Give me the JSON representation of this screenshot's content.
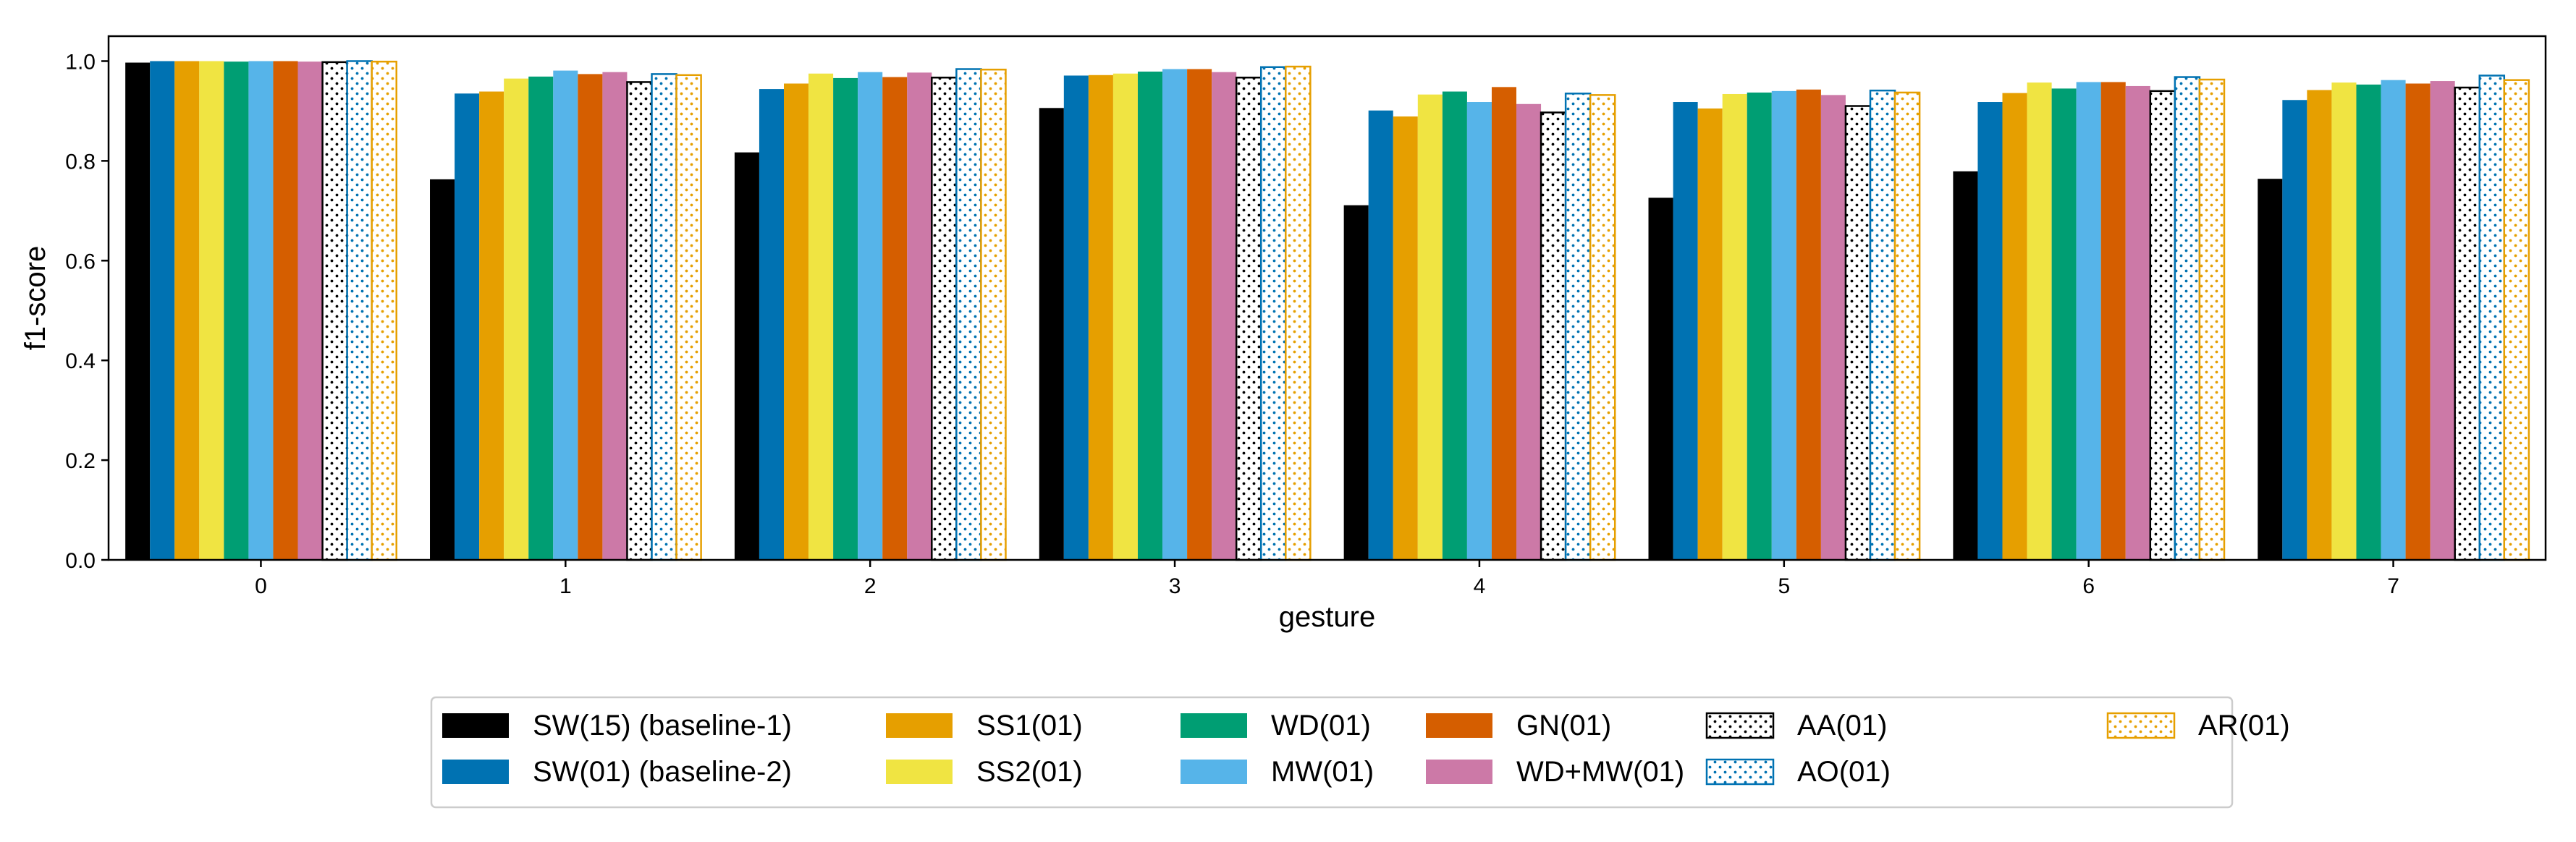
{
  "chart_data": {
    "type": "bar",
    "title": "",
    "xlabel": "gesture",
    "ylabel": "f1-score",
    "ylim": [
      0,
      1.05
    ],
    "yticks": [
      "0.0",
      "0.2",
      "0.4",
      "0.6",
      "0.8",
      "1.0"
    ],
    "categories": [
      "0",
      "1",
      "2",
      "3",
      "4",
      "5",
      "6",
      "7"
    ],
    "legend_position": "bottom-center",
    "series": [
      {
        "name": "SW(15) (baseline-1)",
        "color": "#000000",
        "hatch": false,
        "values": [
          0.997,
          0.763,
          0.817,
          0.906,
          0.711,
          0.726,
          0.779,
          0.764
        ]
      },
      {
        "name": "SW(01) (baseline-2)",
        "color": "#0072b2",
        "hatch": false,
        "values": [
          1.0,
          0.935,
          0.944,
          0.971,
          0.901,
          0.918,
          0.918,
          0.922
        ]
      },
      {
        "name": "SS1(01)",
        "color": "#e69f00",
        "hatch": false,
        "values": [
          1.0,
          0.939,
          0.955,
          0.972,
          0.889,
          0.905,
          0.936,
          0.942
        ]
      },
      {
        "name": "SS2(01)",
        "color": "#f0e442",
        "hatch": false,
        "values": [
          1.0,
          0.965,
          0.975,
          0.975,
          0.933,
          0.934,
          0.957,
          0.957
        ]
      },
      {
        "name": "WD(01)",
        "color": "#009e73",
        "hatch": false,
        "values": [
          0.999,
          0.969,
          0.966,
          0.979,
          0.939,
          0.937,
          0.945,
          0.953
        ]
      },
      {
        "name": "MW(01)",
        "color": "#56b4e9",
        "hatch": false,
        "values": [
          1.0,
          0.981,
          0.978,
          0.984,
          0.918,
          0.94,
          0.958,
          0.962
        ]
      },
      {
        "name": "GN(01)",
        "color": "#d55e00",
        "hatch": false,
        "values": [
          1.0,
          0.974,
          0.968,
          0.984,
          0.948,
          0.943,
          0.958,
          0.955
        ]
      },
      {
        "name": "WD+MW(01)",
        "color": "#cc79a7",
        "hatch": false,
        "values": [
          0.999,
          0.978,
          0.977,
          0.978,
          0.914,
          0.932,
          0.95,
          0.96
        ]
      },
      {
        "name": "AA(01)",
        "color": "#000000",
        "hatch": true,
        "values": [
          0.998,
          0.958,
          0.967,
          0.967,
          0.897,
          0.91,
          0.94,
          0.947
        ]
      },
      {
        "name": "AO(01)",
        "color": "#0072b2",
        "hatch": true,
        "values": [
          1.0,
          0.974,
          0.984,
          0.988,
          0.935,
          0.941,
          0.968,
          0.971
        ]
      },
      {
        "name": "AR(01)",
        "color": "#e69f00",
        "hatch": true,
        "values": [
          0.999,
          0.972,
          0.983,
          0.989,
          0.932,
          0.937,
          0.963,
          0.962
        ]
      }
    ]
  }
}
